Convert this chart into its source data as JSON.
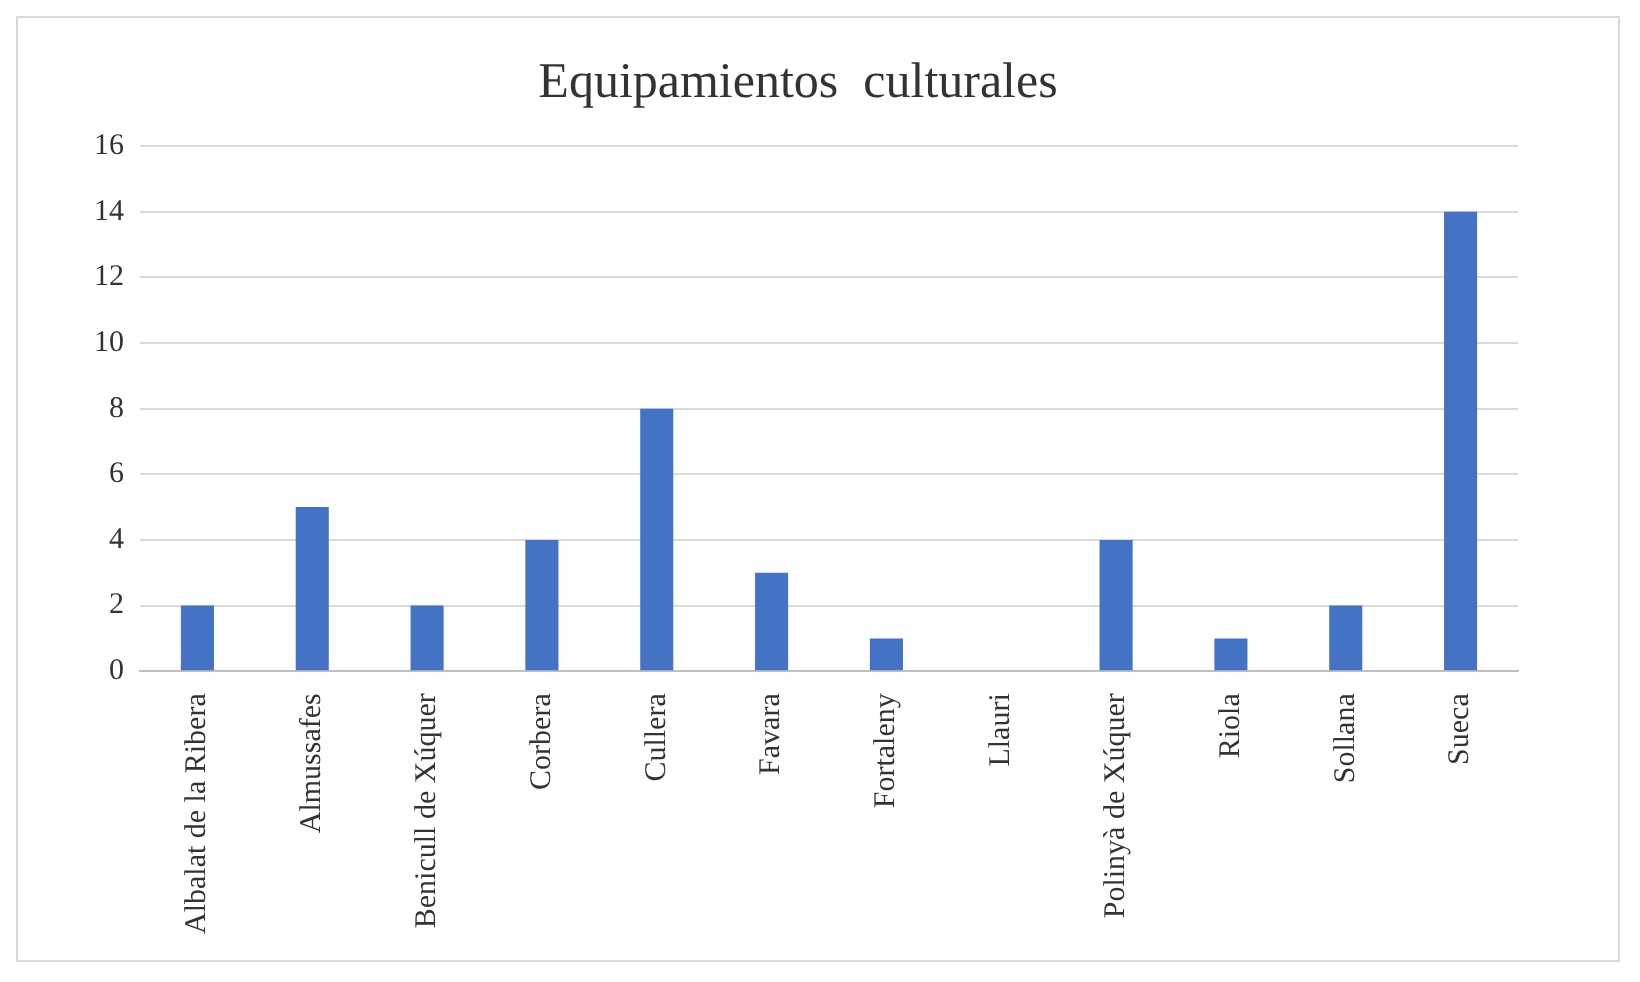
{
  "chart_data": {
    "type": "bar",
    "title": "Equipamientos  culturales",
    "categories": [
      "Albalat de la Ribera",
      "Almussafes",
      "Benicull de Xúquer",
      "Corbera",
      "Cullera",
      "Favara",
      "Fortaleny",
      "Llauri",
      "Polinyà de Xúquer",
      "Riola",
      "Sollana",
      "Sueca"
    ],
    "values": [
      2,
      5,
      2,
      4,
      8,
      3,
      1,
      0,
      4,
      1,
      2,
      14
    ],
    "color": "#4472c4",
    "ylim": [
      0,
      16
    ],
    "yticks": [
      0,
      2,
      4,
      6,
      8,
      10,
      12,
      14,
      16
    ],
    "grid": "y"
  }
}
